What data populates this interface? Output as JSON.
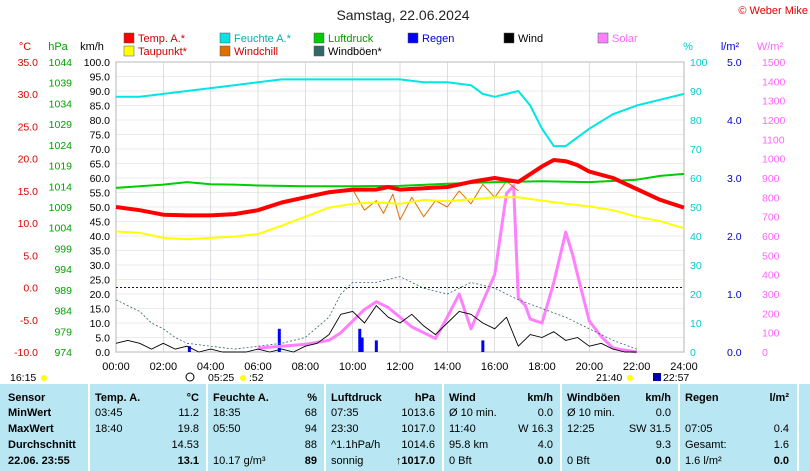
{
  "chart_data": {
    "type": "line",
    "title": "Samstag, 22.06.2024",
    "copyright": "© Weber Mike",
    "x_ticks": [
      "00:00",
      "02:00",
      "04:00",
      "06:00",
      "08:00",
      "10:00",
      "12:00",
      "14:00",
      "16:00",
      "18:00",
      "20:00",
      "22:00",
      "24:00"
    ],
    "xlim": [
      0,
      24
    ],
    "axes": {
      "temp": {
        "unit": "°C",
        "min": -10,
        "max": 35,
        "ticks": [
          "35.0",
          "30.0",
          "25.0",
          "20.0",
          "15.0",
          "10.0",
          "5.0",
          "0.0",
          "-5.0",
          "-10.0"
        ]
      },
      "pressure": {
        "unit": "hPa",
        "min": 974,
        "max": 1044,
        "ticks": [
          "1044",
          "1039",
          "1034",
          "1029",
          "1024",
          "1019",
          "1014",
          "1009",
          "1004",
          "999",
          "994",
          "989",
          "984",
          "979",
          "974"
        ]
      },
      "wind": {
        "unit": "km/h",
        "min": 0,
        "max": 100,
        "ticks": [
          "100.0",
          "95.0",
          "90.0",
          "85.0",
          "80.0",
          "75.0",
          "70.0",
          "65.0",
          "60.0",
          "55.0",
          "50.0",
          "45.0",
          "40.0",
          "35.0",
          "30.0",
          "25.0",
          "20.0",
          "15.0",
          "10.0",
          "5.0",
          "0.0"
        ]
      },
      "humidity": {
        "unit": "%",
        "min": 0,
        "max": 100,
        "ticks": [
          "100",
          "90",
          "80",
          "70",
          "60",
          "50",
          "40",
          "30",
          "20",
          "10",
          "0"
        ]
      },
      "rain": {
        "unit": "l/m²",
        "min": 0,
        "max": 5,
        "ticks": [
          "5.0",
          "4.0",
          "3.0",
          "2.0",
          "1.0",
          "0.0"
        ]
      },
      "solar": {
        "unit": "W/m²",
        "min": 0,
        "max": 1500,
        "ticks": [
          "1500",
          "1400",
          "1300",
          "1200",
          "1100",
          "1000",
          "900",
          "800",
          "700",
          "600",
          "500",
          "400",
          "300",
          "200",
          "100",
          "0"
        ]
      }
    },
    "legend": [
      {
        "label": "Temp. A.*",
        "color": "#ff0000"
      },
      {
        "label": "Feuchte A.*",
        "color": "#00e5e5"
      },
      {
        "label": "Luftdruck",
        "color": "#00cc00"
      },
      {
        "label": "Regen",
        "color": "#0000ff"
      },
      {
        "label": "Wind",
        "color": "#000000"
      },
      {
        "label": "Solar",
        "color": "#ff80ff"
      },
      {
        "label": "Taupunkt*",
        "color": "#ffff00"
      },
      {
        "label": "Windchill",
        "color": "#e07000"
      },
      {
        "label": "Windböen*",
        "color": "#336666"
      }
    ],
    "series": [
      {
        "name": "Temp. A.*",
        "axis": "temp",
        "color": "#ff0000",
        "x": [
          0,
          1,
          2,
          3,
          4,
          5,
          6,
          7,
          8,
          9,
          10,
          11,
          11.5,
          12,
          13,
          14,
          15,
          16,
          17,
          18,
          18.5,
          19,
          19.5,
          20,
          21,
          22,
          23,
          24
        ],
        "y": [
          12.5,
          12.0,
          11.3,
          11.2,
          11.2,
          11.4,
          12.0,
          13.2,
          14.0,
          14.8,
          15.2,
          15.2,
          15.6,
          15.2,
          15.4,
          15.6,
          16.4,
          17.0,
          16.4,
          18.8,
          19.8,
          19.6,
          19.0,
          18.0,
          17.0,
          15.3,
          13.6,
          12.4
        ]
      },
      {
        "name": "Feuchte A.*",
        "axis": "humidity",
        "color": "#00e5e5",
        "x": [
          0,
          1,
          2,
          3,
          4,
          5,
          6,
          7,
          8,
          9,
          10,
          11,
          12,
          13,
          14,
          15,
          15.5,
          16,
          17,
          17.5,
          18,
          18.5,
          19,
          20,
          21,
          22,
          23,
          24
        ],
        "y": [
          88,
          88,
          89,
          90,
          91,
          92,
          93,
          94,
          94,
          94,
          94,
          94,
          94,
          93,
          93,
          92,
          89,
          88,
          90,
          85,
          77,
          71,
          71,
          77,
          82,
          85,
          87,
          89
        ]
      },
      {
        "name": "Luftdruck",
        "axis": "pressure",
        "color": "#00cc00",
        "x": [
          0,
          2,
          3,
          4,
          5,
          6,
          8,
          10,
          12,
          14,
          16,
          18,
          20,
          22,
          23,
          24
        ],
        "y": [
          1013.6,
          1014.4,
          1015.0,
          1014.5,
          1014.4,
          1014.2,
          1014.0,
          1014.0,
          1014.1,
          1014.6,
          1015.0,
          1015.2,
          1015.0,
          1015.6,
          1016.5,
          1017.0
        ]
      },
      {
        "name": "Taupunkt*",
        "axis": "temp",
        "color": "#ffff00",
        "x": [
          0,
          1,
          2,
          3,
          4,
          5,
          6,
          7,
          8,
          9,
          10,
          11,
          12,
          13,
          14,
          15,
          16,
          17,
          18,
          19,
          20,
          21,
          22,
          23,
          24
        ],
        "y": [
          8.7,
          8.5,
          7.7,
          7.5,
          7.7,
          7.9,
          8.3,
          9.6,
          11.0,
          12.4,
          13.0,
          13.2,
          13.0,
          13.6,
          13.4,
          13.7,
          14.0,
          14.0,
          13.5,
          13.0,
          12.6,
          12.0,
          11.0,
          10.3,
          9.2
        ]
      },
      {
        "name": "Windchill",
        "axis": "temp",
        "color": "#e07000",
        "x": [
          10,
          10.5,
          11,
          11.3,
          11.7,
          12,
          12.5,
          13,
          13.5,
          14,
          14.5,
          15,
          15.5,
          16,
          16.5,
          17
        ],
        "y": [
          15.2,
          12.0,
          13.5,
          11.5,
          14.5,
          10.5,
          14.0,
          11.0,
          13.5,
          12.5,
          15.0,
          13.0,
          16.0,
          14.0,
          16.5,
          15.0
        ]
      },
      {
        "name": "Wind",
        "axis": "wind",
        "color": "#000000",
        "x": [
          0,
          0.5,
          1,
          1.5,
          2,
          2.5,
          3,
          3.5,
          4,
          4.5,
          5,
          5.5,
          6,
          6.5,
          7,
          7.5,
          8,
          8.5,
          9,
          9.5,
          10,
          10.5,
          11,
          11.5,
          12,
          12.5,
          13,
          13.5,
          14,
          14.5,
          15,
          15.5,
          16,
          16.5,
          17,
          17.5,
          18,
          18.5,
          19,
          19.5,
          20,
          20.5,
          21,
          21.5,
          22
        ],
        "y": [
          3,
          4,
          3,
          1,
          3,
          1,
          2,
          0,
          1,
          0,
          0,
          0,
          1,
          0,
          1,
          0,
          2,
          3,
          6,
          13,
          14,
          10,
          16,
          12,
          10,
          13,
          9,
          6,
          10,
          14,
          13,
          10,
          8,
          12,
          2,
          6,
          5,
          7,
          4,
          5,
          2,
          3,
          1,
          0,
          0
        ]
      },
      {
        "name": "Windböen*",
        "axis": "wind",
        "color": "#336666",
        "x": [
          0,
          0.5,
          1,
          1.5,
          2,
          2.5,
          3,
          4,
          5,
          6,
          7,
          8,
          9,
          9.5,
          10,
          11,
          12,
          13,
          14,
          15,
          16,
          17,
          18,
          19,
          20,
          21,
          22
        ],
        "y": [
          18,
          16,
          14,
          10,
          8,
          5,
          3,
          2,
          1,
          2,
          3,
          5,
          12,
          20,
          24,
          24,
          26,
          22,
          20,
          24,
          22,
          18,
          15,
          12,
          8,
          4,
          1
        ]
      },
      {
        "name": "Solar",
        "axis": "solar",
        "color": "#ff80ff",
        "x": [
          6,
          7,
          8,
          9,
          9.5,
          10,
          10.5,
          11,
          11.5,
          12,
          12.5,
          13,
          13.5,
          14,
          14.5,
          15,
          15.5,
          16,
          16.5,
          16.8,
          17,
          17.3,
          17.5,
          18,
          18.5,
          19,
          19.3,
          19.5,
          20,
          20.5,
          21,
          21.5,
          22
        ],
        "y": [
          20,
          30,
          40,
          60,
          100,
          160,
          220,
          260,
          230,
          180,
          130,
          100,
          70,
          180,
          300,
          120,
          260,
          400,
          820,
          860,
          280,
          240,
          170,
          150,
          360,
          620,
          500,
          400,
          160,
          80,
          20,
          10,
          0
        ]
      }
    ],
    "rain_bars": {
      "axis": "rain",
      "x": [
        3.1,
        6.9,
        10.3,
        10.4,
        11.0,
        15.5
      ],
      "y": [
        0.1,
        0.4,
        0.4,
        0.25,
        0.2,
        0.2
      ]
    },
    "annotations": {
      "sunrise_left": "16:15",
      "moonrise": "05:25",
      "moon_extra": ":52",
      "sunset": "21:40",
      "moon_set": "22:57"
    }
  },
  "stats": {
    "headers": [
      "Sensor",
      "Temp. A.",
      "°C",
      "Feuchte A.",
      "%",
      "Luftdruck",
      "hPa",
      "Wind",
      "km/h",
      "Windböen",
      "km/h",
      "Regen",
      "l/m²"
    ],
    "rows": [
      {
        "label": "MinWert",
        "temp_time": "03:45",
        "temp": "11.2",
        "hum_time": "18:35",
        "hum": "68",
        "pres_time": "07:35",
        "pres": "1013.6",
        "wind_time": "Ø 10 min.",
        "wind": "0.0",
        "gust_time": "Ø 10 min.",
        "gust": "0.0",
        "rain_time": "",
        "rain": ""
      },
      {
        "label": "MaxWert",
        "temp_time": "18:40",
        "temp": "19.8",
        "hum_time": "05:50",
        "hum": "94",
        "pres_time": "23:30",
        "pres": "1017.0",
        "wind_time": "11:40",
        "wind_dir": "W 16.3",
        "gust_time": "12:25",
        "gust_dir": "SW 31.5",
        "rain_time": "07:05",
        "rain": "0.4"
      },
      {
        "label": "Durchschnitt",
        "temp": "14.53",
        "hum": "88",
        "pres_time": "^1.1hPa/h",
        "pres": "1014.6",
        "wind_time": "95.8 km",
        "wind": "4.0",
        "gust": "9.3",
        "rain_time": "Gesamt:",
        "rain": "1.6"
      },
      {
        "label": "22.06. 23:55",
        "temp": "13.1",
        "hum_time": "10.17 g/m³",
        "hum": "89",
        "pres_time": "sonnig",
        "pres": "↑1017.0",
        "wind_time": "0 Bft",
        "wind": "0.0",
        "gust_time": "0 Bft",
        "gust": "0.0",
        "rain_time": "1.6 l/m²",
        "rain": "0.0"
      }
    ]
  }
}
